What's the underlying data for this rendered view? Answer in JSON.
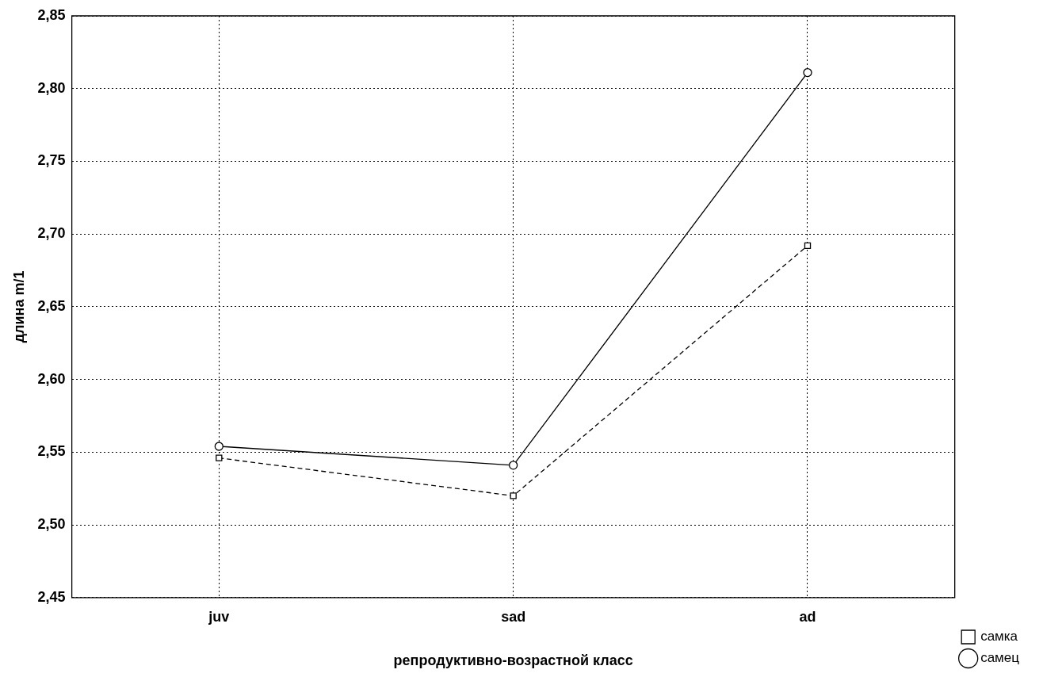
{
  "chart_data": {
    "type": "line",
    "xlabel": "репродуктивно-возрастной класс",
    "ylabel": "длина m/1",
    "categories": [
      "juv",
      "sad",
      "ad"
    ],
    "series": [
      {
        "name": "самец",
        "color": "#000000",
        "values": [
          2.554,
          2.541,
          2.811
        ],
        "marker": "circle",
        "line_style": "solid"
      },
      {
        "name": "самка",
        "color": "#000000",
        "values": [
          2.546,
          2.52,
          2.692
        ],
        "marker": "square",
        "line_style": "dashed"
      }
    ],
    "ylim": [
      2.45,
      2.85
    ],
    "yticks": [
      {
        "value": 2.45,
        "label": "2,45"
      },
      {
        "value": 2.5,
        "label": "2,50"
      },
      {
        "value": 2.55,
        "label": "2,55"
      },
      {
        "value": 2.6,
        "label": "2,60"
      },
      {
        "value": 2.65,
        "label": "2,65"
      },
      {
        "value": 2.7,
        "label": "2,70"
      },
      {
        "value": 2.75,
        "label": "2,75"
      },
      {
        "value": 2.8,
        "label": "2,80"
      },
      {
        "value": 2.85,
        "label": "2,85"
      }
    ],
    "grid": true,
    "legend": "right"
  }
}
